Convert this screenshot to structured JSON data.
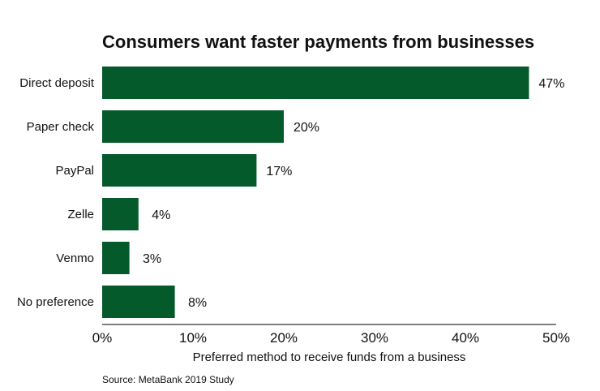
{
  "chart_data": {
    "type": "bar",
    "orientation": "horizontal",
    "title": "Consumers want faster payments from businesses",
    "categories": [
      "Direct deposit",
      "Paper check",
      "PayPal",
      "Zelle",
      "Venmo",
      "No preference"
    ],
    "values": [
      47,
      20,
      17,
      4,
      3,
      8
    ],
    "data_labels": [
      "47%",
      "20%",
      "17%",
      "4%",
      "3%",
      "8%"
    ],
    "xlabel": "Preferred method to receive funds from a business",
    "ylabel": "",
    "xlim": [
      0,
      50
    ],
    "xticks": [
      0,
      10,
      20,
      30,
      40,
      50
    ],
    "xtick_labels": [
      "0%",
      "10%",
      "20%",
      "30%",
      "40%",
      "50%"
    ],
    "grid": false,
    "bar_color": "#055a2b",
    "source": "Source: MetaBank 2019 Study"
  }
}
